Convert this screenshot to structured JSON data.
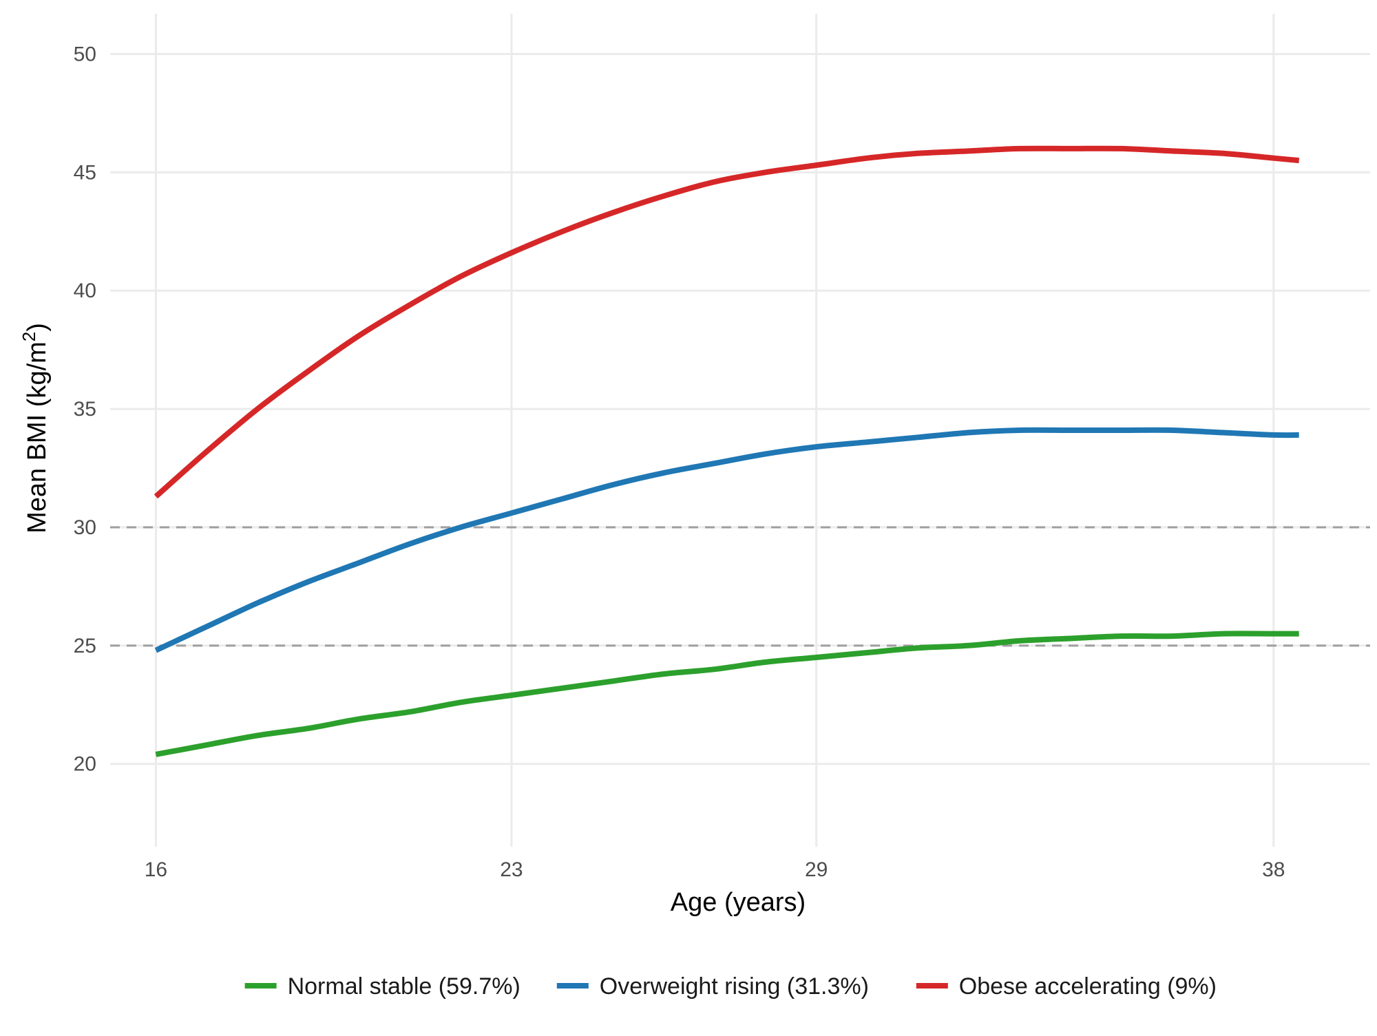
{
  "chart_data": {
    "type": "line",
    "title": "",
    "xlabel": "Age (years)",
    "ylabel": "Mean BMI (kg/m",
    "ylabel_superscript": "2",
    "ylabel_suffix": ")",
    "xlim": [
      15.1,
      39.9
    ],
    "ylim": [
      16.5,
      51.7
    ],
    "x_ticks": [
      16,
      23,
      29,
      38
    ],
    "x_tick_labels": [
      "16",
      "23",
      "29",
      "38"
    ],
    "y_ticks": [
      20,
      25,
      30,
      35,
      40,
      45,
      50
    ],
    "y_tick_labels": [
      "20",
      "25",
      "30",
      "35",
      "40",
      "45",
      "50"
    ],
    "reference_lines": [
      25,
      30
    ],
    "grid": true,
    "legend_position": "bottom",
    "series": [
      {
        "name": "Normal stable (59.7%)",
        "color": "#2ca02c",
        "x": [
          16,
          17,
          18,
          19,
          20,
          21,
          22,
          23,
          24,
          25,
          26,
          27,
          28,
          29,
          30,
          31,
          32,
          33,
          34,
          35,
          36,
          37,
          38,
          38.5
        ],
        "y": [
          20.4,
          20.8,
          21.2,
          21.5,
          21.9,
          22.2,
          22.6,
          22.9,
          23.2,
          23.5,
          23.8,
          24.0,
          24.3,
          24.5,
          24.7,
          24.9,
          25.0,
          25.2,
          25.3,
          25.4,
          25.4,
          25.5,
          25.5,
          25.5
        ]
      },
      {
        "name": "Overweight rising (31.3%)",
        "color": "#1f77b4",
        "x": [
          16,
          17,
          18,
          19,
          20,
          21,
          22,
          23,
          24,
          25,
          26,
          27,
          28,
          29,
          30,
          31,
          32,
          33,
          34,
          35,
          36,
          37,
          38,
          38.5
        ],
        "y": [
          24.8,
          25.8,
          26.8,
          27.7,
          28.5,
          29.3,
          30.0,
          30.6,
          31.2,
          31.8,
          32.3,
          32.7,
          33.1,
          33.4,
          33.6,
          33.8,
          34.0,
          34.1,
          34.1,
          34.1,
          34.1,
          34.0,
          33.9,
          33.9
        ]
      },
      {
        "name": "Obese accelerating (9%)",
        "color": "#d62728",
        "x": [
          16,
          17,
          18,
          19,
          20,
          21,
          22,
          23,
          24,
          25,
          26,
          27,
          28,
          29,
          30,
          31,
          32,
          33,
          34,
          35,
          36,
          37,
          38,
          38.5
        ],
        "y": [
          31.3,
          33.2,
          35.0,
          36.6,
          38.1,
          39.4,
          40.6,
          41.6,
          42.5,
          43.3,
          44.0,
          44.6,
          45.0,
          45.3,
          45.6,
          45.8,
          45.9,
          46.0,
          46.0,
          46.0,
          45.9,
          45.8,
          45.6,
          45.5
        ]
      }
    ]
  }
}
